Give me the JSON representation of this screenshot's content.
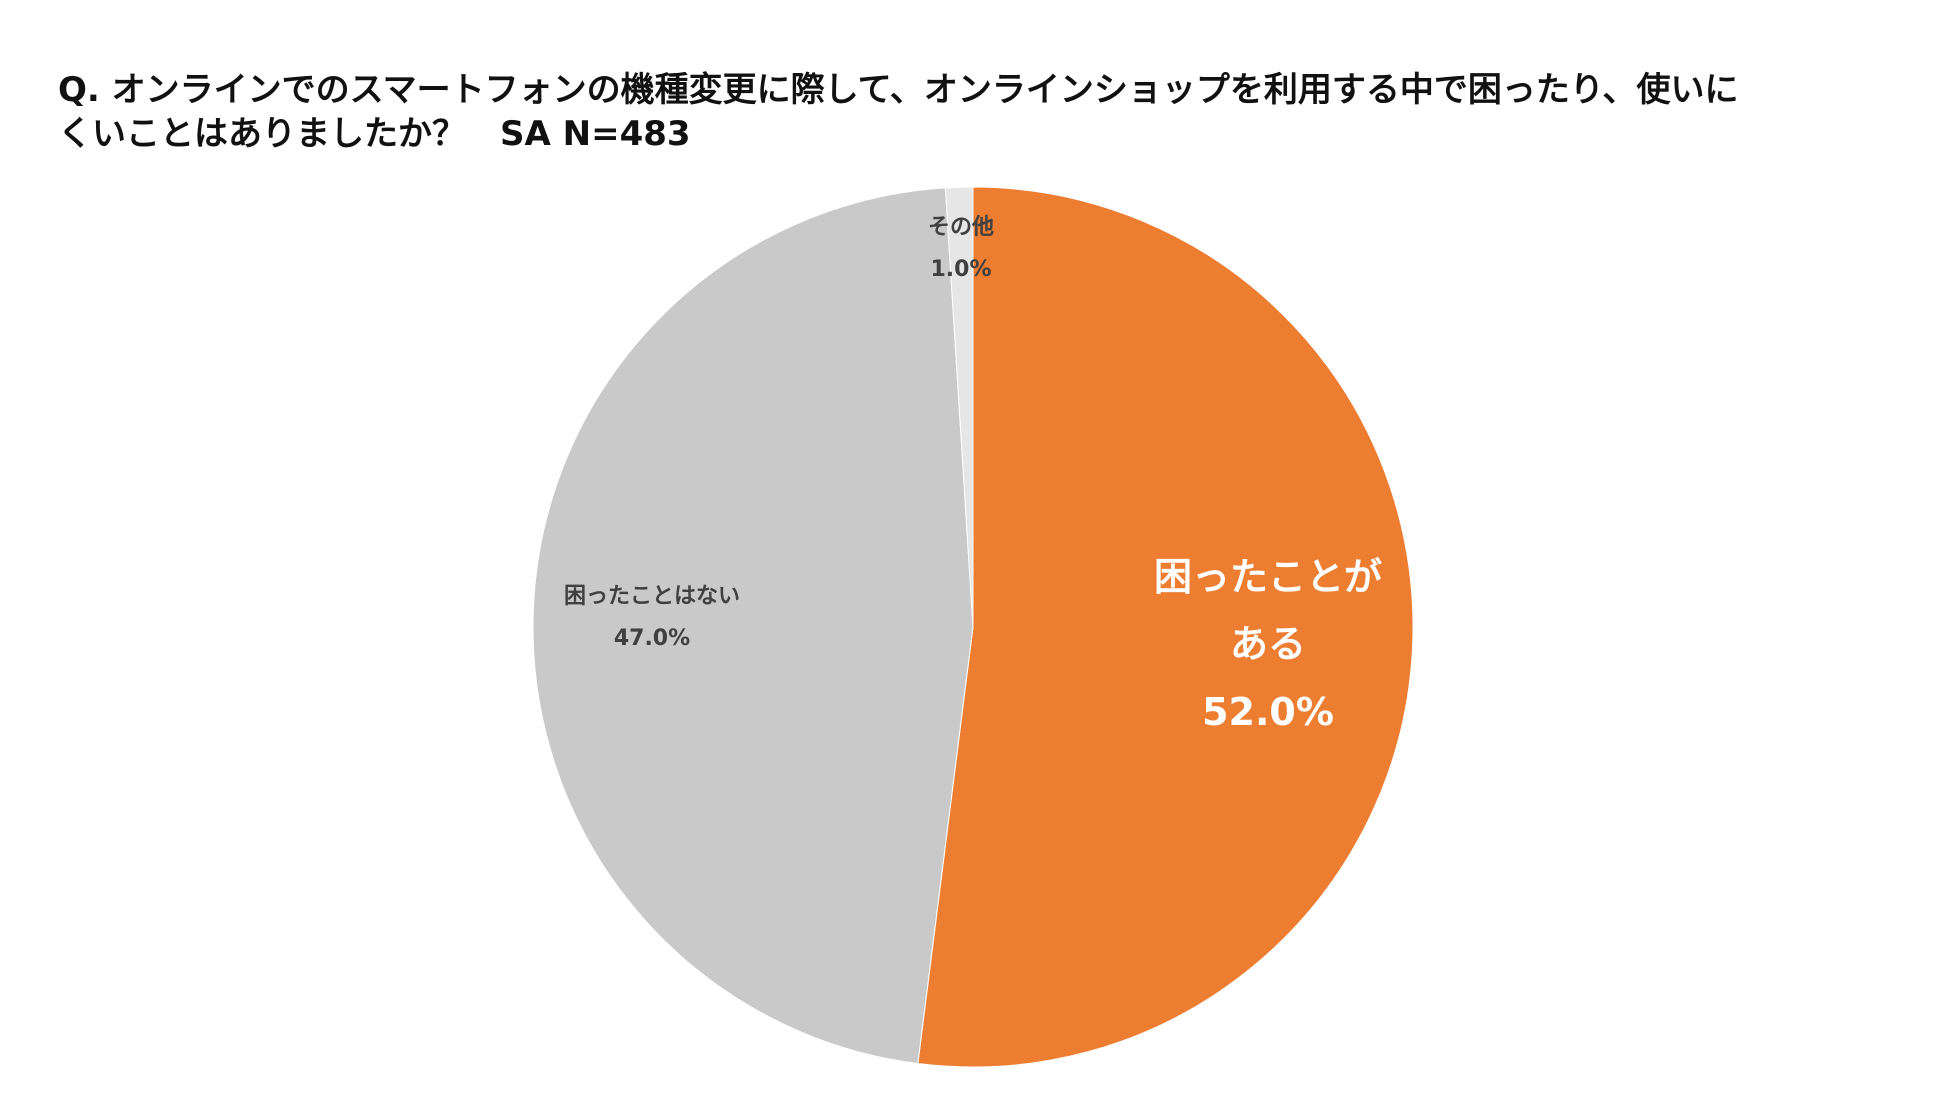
{
  "chart_data": {
    "type": "pie",
    "title_lines": [
      "Q. オンラインでのスマートフォンの機種変更に際して、オンラインショップを利用する中で困ったり、使いに",
      "くいことはありましたか？　SA N=483"
    ],
    "slices": [
      {
        "label_lines": [
          "困ったことが",
          "ある"
        ],
        "value": 52.0,
        "value_label": "52.0%",
        "color": "#ED7D31"
      },
      {
        "label_lines": [
          "困ったことはない"
        ],
        "value": 47.0,
        "value_label": "47.0%",
        "color": "#C9C9C9"
      },
      {
        "label_lines": [
          "その他"
        ],
        "value": 1.0,
        "value_label": "1.0%",
        "color": "#E7E6E6"
      }
    ],
    "start_angle": "12 o'clock",
    "direction": "clockwise"
  }
}
